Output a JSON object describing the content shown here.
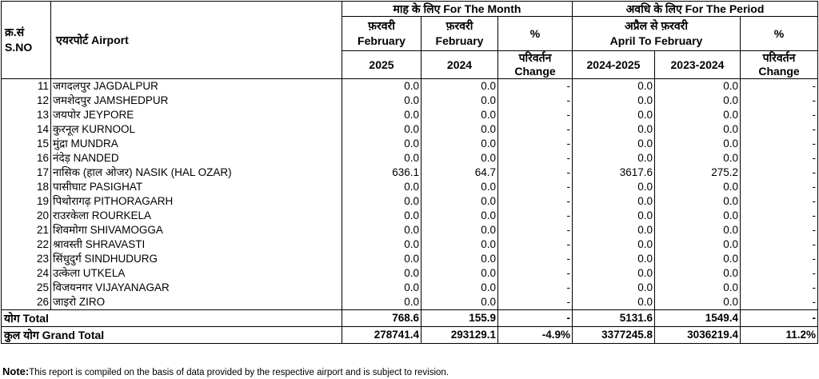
{
  "header": {
    "sno": "क्र.सं",
    "sno_en": "S.NO",
    "airport": "एयरपोर्ट Airport",
    "month_group": "माह के लिए For The Month",
    "period_group": "अवधि के लिए For The Period",
    "feb_hi": "फ़रवरी",
    "feb_en": "February",
    "pct": "%",
    "period_hi": "अप्रैल से फ़रवरी",
    "period_en": "April To February",
    "y2025": "2025",
    "y2024": "2024",
    "change_hi": "परिवर्तन",
    "change_en": "Change",
    "p1": "2024-2025",
    "p2": "2023-2024"
  },
  "rows": [
    {
      "sno": "11",
      "airport": "जगदलपुर JAGDALPUR",
      "m25": "0.0",
      "m24": "0.0",
      "mch": "-",
      "p1": "0.0",
      "p2": "0.0",
      "pch": "-"
    },
    {
      "sno": "12",
      "airport": "जमशेदपुर JAMSHEDPUR",
      "m25": "0.0",
      "m24": "0.0",
      "mch": "-",
      "p1": "0.0",
      "p2": "0.0",
      "pch": "-"
    },
    {
      "sno": "13",
      "airport": "जयपोर JEYPORE",
      "m25": "0.0",
      "m24": "0.0",
      "mch": "-",
      "p1": "0.0",
      "p2": "0.0",
      "pch": "-"
    },
    {
      "sno": "14",
      "airport": "कुरनूल KURNOOL",
      "m25": "0.0",
      "m24": "0.0",
      "mch": "-",
      "p1": "0.0",
      "p2": "0.0",
      "pch": "-"
    },
    {
      "sno": "15",
      "airport": "मुंद्रा MUNDRA",
      "m25": "0.0",
      "m24": "0.0",
      "mch": "-",
      "p1": "0.0",
      "p2": "0.0",
      "pch": "-"
    },
    {
      "sno": "16",
      "airport": "नंदेड़ NANDED",
      "m25": "0.0",
      "m24": "0.0",
      "mch": "-",
      "p1": "0.0",
      "p2": "0.0",
      "pch": "-"
    },
    {
      "sno": "17",
      "airport": "नासिक (हाल ओजर) NASIK (HAL OZAR)",
      "m25": "636.1",
      "m24": "64.7",
      "mch": "-",
      "p1": "3617.6",
      "p2": "275.2",
      "pch": "-"
    },
    {
      "sno": "18",
      "airport": "पासीघाट PASIGHAT",
      "m25": "0.0",
      "m24": "0.0",
      "mch": "-",
      "p1": "0.0",
      "p2": "0.0",
      "pch": "-"
    },
    {
      "sno": "19",
      "airport": "पिथोरागढ़ PITHORAGARH",
      "m25": "0.0",
      "m24": "0.0",
      "mch": "-",
      "p1": "0.0",
      "p2": "0.0",
      "pch": "-"
    },
    {
      "sno": "20",
      "airport": "राउरकेला ROURKELA",
      "m25": "0.0",
      "m24": "0.0",
      "mch": "-",
      "p1": "0.0",
      "p2": "0.0",
      "pch": "-"
    },
    {
      "sno": "21",
      "airport": "शिवमोगा SHIVAMOGGA",
      "m25": "0.0",
      "m24": "0.0",
      "mch": "-",
      "p1": "0.0",
      "p2": "0.0",
      "pch": "-"
    },
    {
      "sno": "22",
      "airport": "श्रावस्ती SHRAVASTI",
      "m25": "0.0",
      "m24": "0.0",
      "mch": "-",
      "p1": "0.0",
      "p2": "0.0",
      "pch": "-"
    },
    {
      "sno": "23",
      "airport": "सिंधुदुर्ग SINDHUDURG",
      "m25": "0.0",
      "m24": "0.0",
      "mch": "-",
      "p1": "0.0",
      "p2": "0.0",
      "pch": "-"
    },
    {
      "sno": "24",
      "airport": "उत्केला UTKELA",
      "m25": "0.0",
      "m24": "0.0",
      "mch": "-",
      "p1": "0.0",
      "p2": "0.0",
      "pch": "-"
    },
    {
      "sno": "25",
      "airport": "विजयनगर VIJAYANAGAR",
      "m25": "0.0",
      "m24": "0.0",
      "mch": "-",
      "p1": "0.0",
      "p2": "0.0",
      "pch": "-"
    },
    {
      "sno": "26",
      "airport": "जाइरो ZIRO",
      "m25": "0.0",
      "m24": "0.0",
      "mch": "-",
      "p1": "0.0",
      "p2": "0.0",
      "pch": "-"
    }
  ],
  "total": {
    "label": "योग Total",
    "m25": "768.6",
    "m24": "155.9",
    "mch": "-",
    "p1": "5131.6",
    "p2": "1549.4",
    "pch": "-"
  },
  "grand_total": {
    "label": "कुल योग Grand Total",
    "m25": "278741.4",
    "m24": "293129.1",
    "mch": "-4.9%",
    "p1": "3377245.8",
    "p2": "3036219.4",
    "pch": "11.2%"
  },
  "note": {
    "label": "Note:",
    "text": "This report is compiled on the basis of data provided by the respective airport and is subject to revision."
  }
}
